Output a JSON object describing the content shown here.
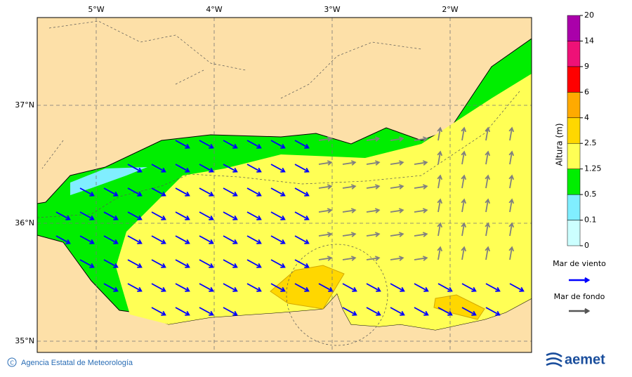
{
  "map": {
    "lon_labels": [
      "5°W",
      "4°W",
      "3°W",
      "2°W"
    ],
    "lat_labels": [
      "37°N",
      "36°N",
      "35°N"
    ]
  },
  "colorbar": {
    "title": "Altura (m)",
    "levels": [
      0,
      0.1,
      0.5,
      1.25,
      2.5,
      4,
      6,
      9,
      14,
      20
    ],
    "colors": [
      "#ccffff",
      "#80eeff",
      "#00ee00",
      "#ffff55",
      "#ffd700",
      "#ffaa00",
      "#ff0000",
      "#ee1177",
      "#aa00aa"
    ]
  },
  "legend": [
    {
      "label": "Mar de viento",
      "color": "#0000ff"
    },
    {
      "label": "Mar de fondo",
      "color": "#555555"
    }
  ],
  "footer": {
    "agency": "Agencia Estatal de Meteorología",
    "logo": "aemet"
  }
}
